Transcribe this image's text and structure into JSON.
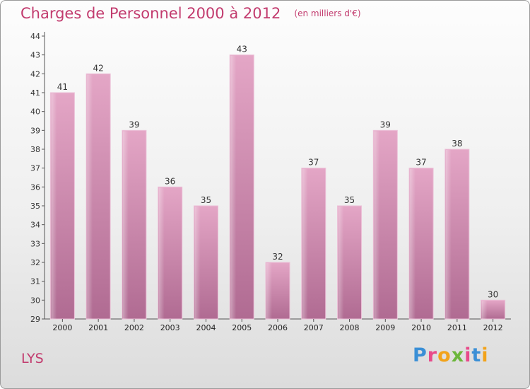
{
  "chart_data": {
    "type": "bar",
    "title": "Charges de Personnel 2000 à 2012",
    "subtitle": "(en milliers d'€)",
    "categories": [
      "2000",
      "2001",
      "2002",
      "2003",
      "2004",
      "2005",
      "2006",
      "2007",
      "2008",
      "2009",
      "2010",
      "2011",
      "2012"
    ],
    "values": [
      41,
      42,
      39,
      36,
      35,
      43,
      32,
      37,
      35,
      39,
      37,
      38,
      30
    ],
    "ylim": [
      29,
      44
    ],
    "yticks": [
      29,
      30,
      31,
      32,
      33,
      34,
      35,
      36,
      37,
      38,
      39,
      40,
      41,
      42,
      43,
      44
    ],
    "grid": false,
    "bar_color": "#c9789f"
  },
  "commune": "LYS",
  "logo": {
    "text": "Proxiti",
    "colors": [
      "#3a8fd6",
      "#e84a8a",
      "#f2a31b",
      "#6bb63b",
      "#e84a8a",
      "#3a8fd6",
      "#f2a31b"
    ]
  }
}
